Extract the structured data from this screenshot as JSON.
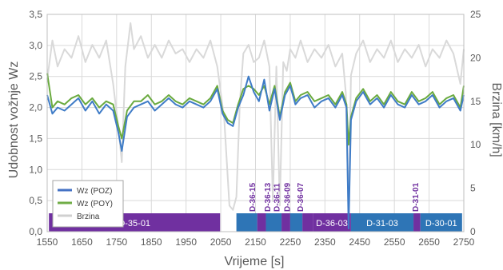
{
  "chart_data": {
    "type": "line",
    "xlabel": "Vrijeme [s]",
    "ylabel_left": "Udobnost vožnje Wz",
    "ylabel_right": "Brzina [km/h]",
    "xlim": [
      1550,
      2750
    ],
    "ylim_left": [
      0,
      3.5
    ],
    "ylim_right": [
      0,
      25
    ],
    "x_ticks": [
      "1550",
      "1650",
      "1750",
      "1850",
      "1950",
      "2050",
      "2150",
      "2250",
      "2350",
      "2450",
      "2550",
      "2650",
      "2750"
    ],
    "y_ticks_left": [
      "0,0",
      "0,5",
      "1,0",
      "1,5",
      "2,0",
      "2,5",
      "3,0",
      "3,5"
    ],
    "y_ticks_right": [
      "0",
      "5",
      "10",
      "15",
      "20",
      "25"
    ],
    "grid": true,
    "legend": {
      "placement": "bottom-left",
      "entries": [
        {
          "label": "Wz (POZ)",
          "color": "#4472c4"
        },
        {
          "label": "Wz (POY)",
          "color": "#70ad47"
        },
        {
          "label": "Brzina",
          "color": "#d0d0d0"
        }
      ]
    },
    "series": [
      {
        "name": "Wz (POZ)",
        "axis": "left",
        "color": "#3f7cc7",
        "x": [
          1550,
          1565,
          1580,
          1600,
          1620,
          1640,
          1660,
          1680,
          1700,
          1720,
          1740,
          1755,
          1765,
          1780,
          1800,
          1820,
          1840,
          1860,
          1880,
          1900,
          1920,
          1940,
          1960,
          1980,
          2000,
          2020,
          2040,
          2055,
          2070,
          2085,
          2100,
          2115,
          2130,
          2145,
          2160,
          2175,
          2190,
          2205,
          2220,
          2235,
          2250,
          2265,
          2280,
          2300,
          2320,
          2340,
          2360,
          2380,
          2400,
          2412,
          2418,
          2425,
          2440,
          2460,
          2480,
          2500,
          2520,
          2540,
          2560,
          2580,
          2600,
          2620,
          2640,
          2660,
          2680,
          2700,
          2720,
          2740,
          2750
        ],
        "values": [
          2.2,
          1.9,
          2.0,
          1.95,
          2.05,
          2.15,
          1.95,
          2.1,
          1.9,
          2.05,
          1.95,
          1.6,
          1.3,
          1.85,
          2.0,
          2.05,
          2.1,
          1.95,
          2.05,
          2.15,
          2.05,
          2.0,
          2.1,
          2.05,
          2.0,
          2.1,
          2.3,
          1.9,
          1.75,
          1.7,
          2.0,
          2.2,
          2.5,
          2.25,
          2.1,
          2.45,
          1.95,
          2.3,
          1.8,
          2.2,
          2.35,
          2.05,
          2.15,
          2.2,
          2.0,
          2.1,
          2.15,
          2.0,
          2.2,
          2.0,
          0.05,
          1.8,
          2.1,
          2.25,
          2.05,
          2.15,
          2.0,
          2.2,
          2.05,
          2.0,
          2.2,
          2.05,
          2.1,
          2.2,
          2.0,
          2.1,
          2.15,
          1.95,
          2.2
        ]
      },
      {
        "name": "Wz (POY)",
        "axis": "left",
        "color": "#6aaa3f",
        "x": [
          1550,
          1565,
          1580,
          1600,
          1620,
          1640,
          1660,
          1680,
          1700,
          1720,
          1740,
          1755,
          1765,
          1780,
          1800,
          1820,
          1840,
          1860,
          1880,
          1900,
          1920,
          1940,
          1960,
          1980,
          2000,
          2020,
          2040,
          2055,
          2070,
          2085,
          2100,
          2115,
          2130,
          2145,
          2160,
          2175,
          2190,
          2205,
          2220,
          2235,
          2250,
          2265,
          2280,
          2300,
          2320,
          2340,
          2360,
          2380,
          2400,
          2412,
          2418,
          2425,
          2440,
          2460,
          2480,
          2500,
          2520,
          2540,
          2560,
          2580,
          2600,
          2620,
          2640,
          2660,
          2680,
          2700,
          2720,
          2740,
          2750
        ],
        "values": [
          2.55,
          2.0,
          2.1,
          2.05,
          2.15,
          2.2,
          2.05,
          2.15,
          2.0,
          2.1,
          2.05,
          1.7,
          1.5,
          1.95,
          2.1,
          2.1,
          2.2,
          2.05,
          2.1,
          2.2,
          2.1,
          2.05,
          2.15,
          2.1,
          2.05,
          2.15,
          2.35,
          1.95,
          1.8,
          1.75,
          2.05,
          2.3,
          2.35,
          2.3,
          2.2,
          2.35,
          2.05,
          2.35,
          1.85,
          2.25,
          2.4,
          2.1,
          2.2,
          2.25,
          2.1,
          2.15,
          2.2,
          2.05,
          2.25,
          2.05,
          1.4,
          1.85,
          2.15,
          2.3,
          2.1,
          2.2,
          2.05,
          2.25,
          2.1,
          2.05,
          2.25,
          2.1,
          2.15,
          2.25,
          2.05,
          2.15,
          2.2,
          2.0,
          2.35
        ]
      },
      {
        "name": "Brzina",
        "axis": "right",
        "color": "#d9d9d9",
        "x": [
          1550,
          1565,
          1580,
          1600,
          1620,
          1640,
          1660,
          1680,
          1700,
          1720,
          1740,
          1755,
          1765,
          1775,
          1790,
          1800,
          1820,
          1840,
          1860,
          1880,
          1900,
          1920,
          1940,
          1960,
          1980,
          2000,
          2020,
          2040,
          2060,
          2075,
          2085,
          2095,
          2105,
          2115,
          2130,
          2145,
          2160,
          2175,
          2190,
          2200,
          2210,
          2220,
          2230,
          2240,
          2250,
          2265,
          2280,
          2300,
          2320,
          2340,
          2360,
          2380,
          2400,
          2410,
          2418,
          2425,
          2440,
          2460,
          2480,
          2500,
          2520,
          2540,
          2560,
          2580,
          2600,
          2620,
          2640,
          2660,
          2680,
          2700,
          2720,
          2740,
          2750
        ],
        "values": [
          17.5,
          22.0,
          19.0,
          21.0,
          20.0,
          22.5,
          19.5,
          21.5,
          20.0,
          22.0,
          17.0,
          12.0,
          8.0,
          19.0,
          24.0,
          21.0,
          22.5,
          20.0,
          21.5,
          20.0,
          22.0,
          20.5,
          21.0,
          19.5,
          21.0,
          20.0,
          22.0,
          19.0,
          13.0,
          3.0,
          2.5,
          4.0,
          15.0,
          20.5,
          21.5,
          19.5,
          20.0,
          22.0,
          19.0,
          3.5,
          19.0,
          3.0,
          19.5,
          18.5,
          21.0,
          20.0,
          22.0,
          19.5,
          21.0,
          20.0,
          21.5,
          19.0,
          20.5,
          16.0,
          2.0,
          18.0,
          20.5,
          22.0,
          19.5,
          21.0,
          20.0,
          22.0,
          19.5,
          21.0,
          20.0,
          21.5,
          19.0,
          21.0,
          20.0,
          22.0,
          20.5,
          17.0,
          21.0
        ]
      }
    ],
    "segments": [
      {
        "label": "D-35-01",
        "start": 1555,
        "end": 2048,
        "color": "#7030a0"
      },
      {
        "label": "",
        "start": 2095,
        "end": 2155,
        "color": "#2e75b6"
      },
      {
        "label": "",
        "start": 2155,
        "end": 2180,
        "color": "#7030a0"
      },
      {
        "label": "",
        "start": 2180,
        "end": 2225,
        "color": "#2e75b6"
      },
      {
        "label": "",
        "start": 2225,
        "end": 2250,
        "color": "#7030a0"
      },
      {
        "label": "",
        "start": 2250,
        "end": 2285,
        "color": "#2e75b6"
      },
      {
        "label": "",
        "start": 2285,
        "end": 2315,
        "color": "#7030a0"
      },
      {
        "label": "D-36-03",
        "start": 2315,
        "end": 2425,
        "color": "#7030a0"
      },
      {
        "label": "D-31-03",
        "start": 2425,
        "end": 2605,
        "color": "#2e75b6"
      },
      {
        "label": "",
        "start": 2605,
        "end": 2625,
        "color": "#7030a0"
      },
      {
        "label": "D-30-01",
        "start": 2625,
        "end": 2745,
        "color": "#2e75b6"
      }
    ],
    "station_labels": [
      {
        "label": "D-36-15",
        "x": 2140
      },
      {
        "label": "D-36-13",
        "x": 2183
      },
      {
        "label": "D-36-11",
        "x": 2210
      },
      {
        "label": "D-36-09",
        "x": 2240
      },
      {
        "label": "D-36-07",
        "x": 2278
      },
      {
        "label": "D-31-01",
        "x": 2610
      }
    ]
  }
}
